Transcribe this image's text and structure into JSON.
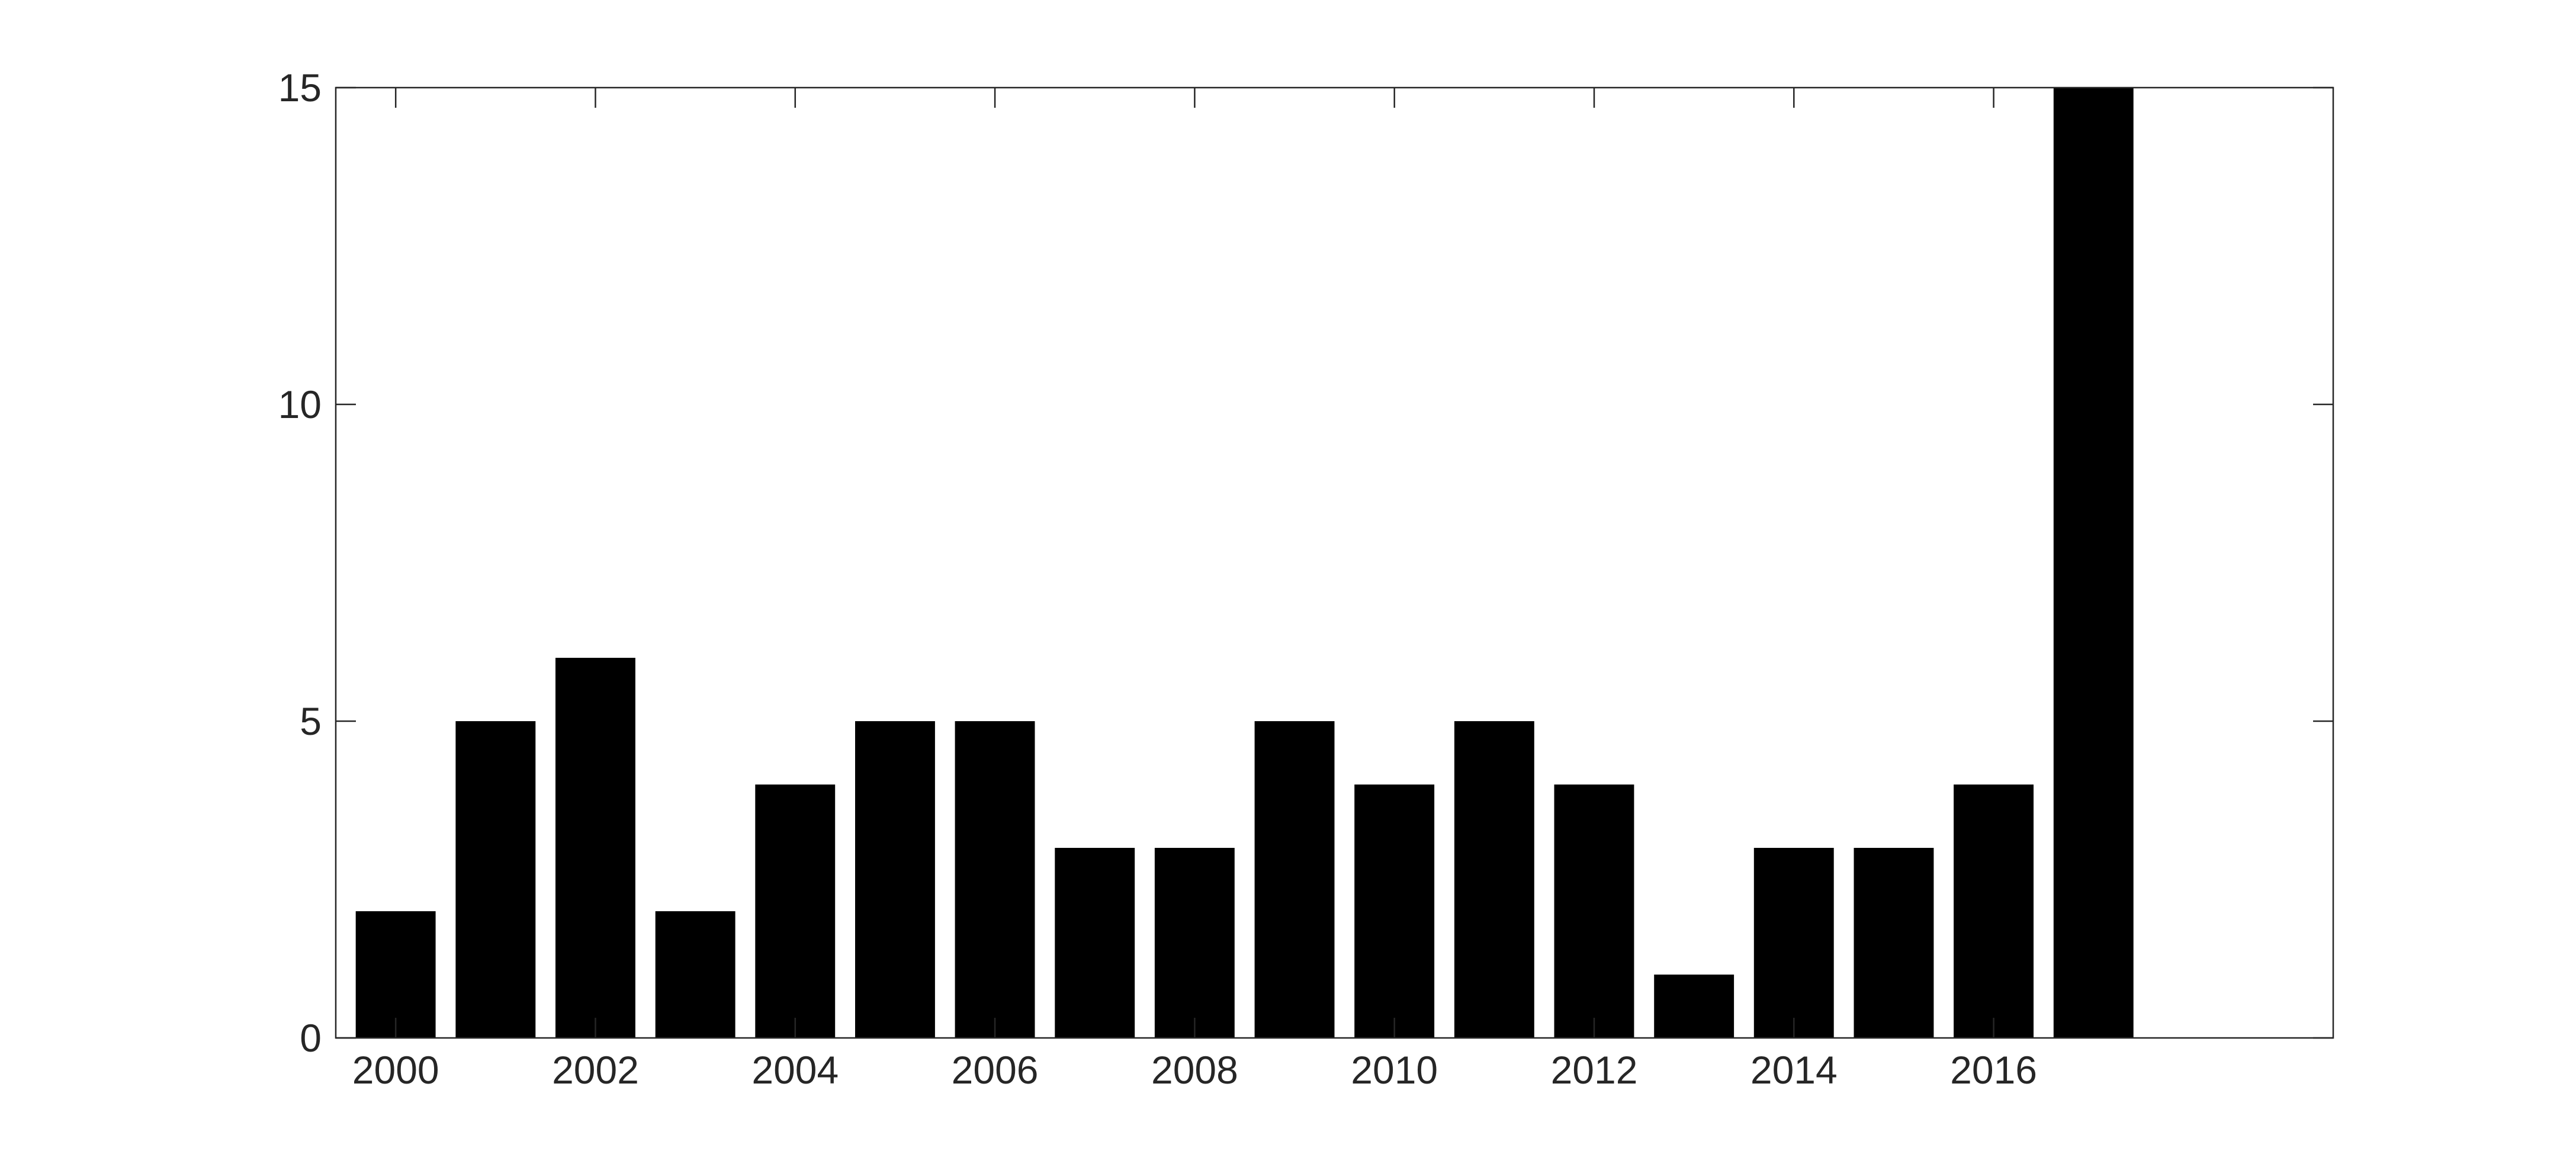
{
  "chart_data": {
    "type": "bar",
    "title": "",
    "xlabel": "",
    "ylabel": "",
    "x": [
      2000,
      2001,
      2002,
      2003,
      2004,
      2005,
      2006,
      2007,
      2008,
      2009,
      2010,
      2011,
      2012,
      2013,
      2014,
      2015,
      2016,
      2017
    ],
    "values": [
      2,
      5,
      6,
      2,
      4,
      5,
      5,
      3,
      3,
      5,
      4,
      5,
      4,
      1,
      3,
      3,
      4,
      15
    ],
    "xlim": [
      1999.4,
      2019.4
    ],
    "ylim": [
      0,
      15
    ],
    "x_ticks": [
      "2000",
      "2002",
      "2004",
      "2006",
      "2008",
      "2010",
      "2012",
      "2014",
      "2016"
    ],
    "y_ticks": [
      "0",
      "5",
      "10",
      "15"
    ],
    "grid": false,
    "bar_color": "#000000",
    "axis_color": "#262626"
  }
}
